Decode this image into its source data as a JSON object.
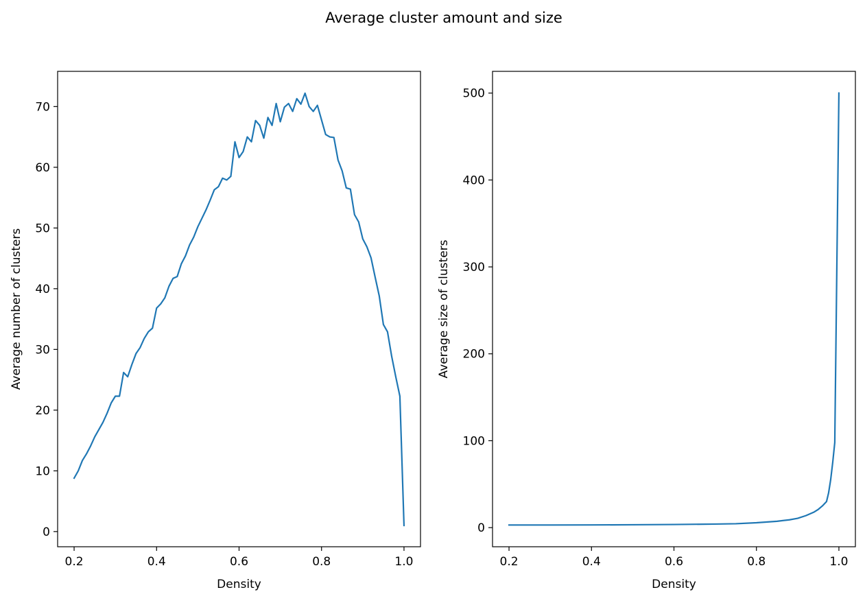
{
  "figure": {
    "title": "Average cluster amount and size",
    "line_color": "#1f77b4"
  },
  "chart_data": [
    {
      "type": "line",
      "title": "",
      "xlabel": "Density",
      "ylabel": "Average number of clusters",
      "xlim": [
        0.16,
        1.04
      ],
      "ylim": [
        -2.5,
        75.8
      ],
      "xticks": [
        0.2,
        0.4,
        0.6,
        0.8,
        1.0
      ],
      "xtick_labels": [
        "0.2",
        "0.4",
        "0.6",
        "0.8",
        "1.0"
      ],
      "yticks": [
        0,
        10,
        20,
        30,
        40,
        50,
        60,
        70
      ],
      "ytick_labels": [
        "0",
        "10",
        "20",
        "30",
        "40",
        "50",
        "60",
        "70"
      ],
      "grid": false,
      "series": [
        {
          "x": [
            0.2,
            0.21,
            0.22,
            0.23,
            0.24,
            0.25,
            0.26,
            0.27,
            0.28,
            0.29,
            0.3,
            0.31,
            0.32,
            0.33,
            0.34,
            0.35,
            0.36,
            0.37,
            0.38,
            0.39,
            0.4,
            0.41,
            0.42,
            0.43,
            0.44,
            0.45,
            0.46,
            0.47,
            0.48,
            0.49,
            0.5,
            0.51,
            0.52,
            0.53,
            0.54,
            0.55,
            0.56,
            0.57,
            0.58,
            0.59,
            0.6,
            0.61,
            0.62,
            0.63,
            0.64,
            0.65,
            0.66,
            0.67,
            0.68,
            0.69,
            0.7,
            0.71,
            0.72,
            0.73,
            0.74,
            0.75,
            0.76,
            0.77,
            0.78,
            0.79,
            0.8,
            0.81,
            0.82,
            0.83,
            0.84,
            0.85,
            0.86,
            0.87,
            0.88,
            0.89,
            0.9,
            0.91,
            0.92,
            0.93,
            0.94,
            0.95,
            0.96,
            0.97,
            0.98,
            0.99,
            1.0
          ],
          "y": [
            8.8,
            10.0,
            11.7,
            12.8,
            14.1,
            15.6,
            16.8,
            18.0,
            19.5,
            21.2,
            22.3,
            22.3,
            26.2,
            25.5,
            27.5,
            29.3,
            30.3,
            31.8,
            32.9,
            33.5,
            36.8,
            37.5,
            38.5,
            40.4,
            41.7,
            42.0,
            44.1,
            45.4,
            47.2,
            48.5,
            50.2,
            51.6,
            53.0,
            54.6,
            56.3,
            56.8,
            58.2,
            57.9,
            58.5,
            64.2,
            61.6,
            62.6,
            65.0,
            64.2,
            67.7,
            66.9,
            64.8,
            68.2,
            66.9,
            70.5,
            67.5,
            69.9,
            70.5,
            69.2,
            71.3,
            70.4,
            72.2,
            70.0,
            69.2,
            70.2,
            67.8,
            65.4,
            65.0,
            64.9,
            61.2,
            59.4,
            56.6,
            56.4,
            52.2,
            51.0,
            48.2,
            46.9,
            45.1,
            41.9,
            38.8,
            34.1,
            32.9,
            28.9,
            25.5,
            22.3,
            1.0
          ]
        }
      ]
    },
    {
      "type": "line",
      "title": "",
      "xlabel": "Density",
      "ylabel": "Average size of clusters",
      "xlim": [
        0.16,
        1.04
      ],
      "ylim": [
        -22,
        525
      ],
      "xticks": [
        0.2,
        0.4,
        0.6,
        0.8,
        1.0
      ],
      "xtick_labels": [
        "0.2",
        "0.4",
        "0.6",
        "0.8",
        "1.0"
      ],
      "yticks": [
        0,
        100,
        200,
        300,
        400,
        500
      ],
      "ytick_labels": [
        "0",
        "100",
        "200",
        "300",
        "400",
        "500"
      ],
      "grid": false,
      "series": [
        {
          "x": [
            0.2,
            0.3,
            0.4,
            0.5,
            0.6,
            0.7,
            0.75,
            0.8,
            0.85,
            0.88,
            0.9,
            0.92,
            0.94,
            0.95,
            0.96,
            0.97,
            0.975,
            0.98,
            0.985,
            0.99,
            0.995,
            1.0
          ],
          "y": [
            3.0,
            3.0,
            3.1,
            3.3,
            3.6,
            4.1,
            4.5,
            5.6,
            7.3,
            9.0,
            10.7,
            13.8,
            18.0,
            21.0,
            25.0,
            30.0,
            40.0,
            55.0,
            75.0,
            98.0,
            300.0,
            500.0
          ]
        }
      ]
    }
  ]
}
